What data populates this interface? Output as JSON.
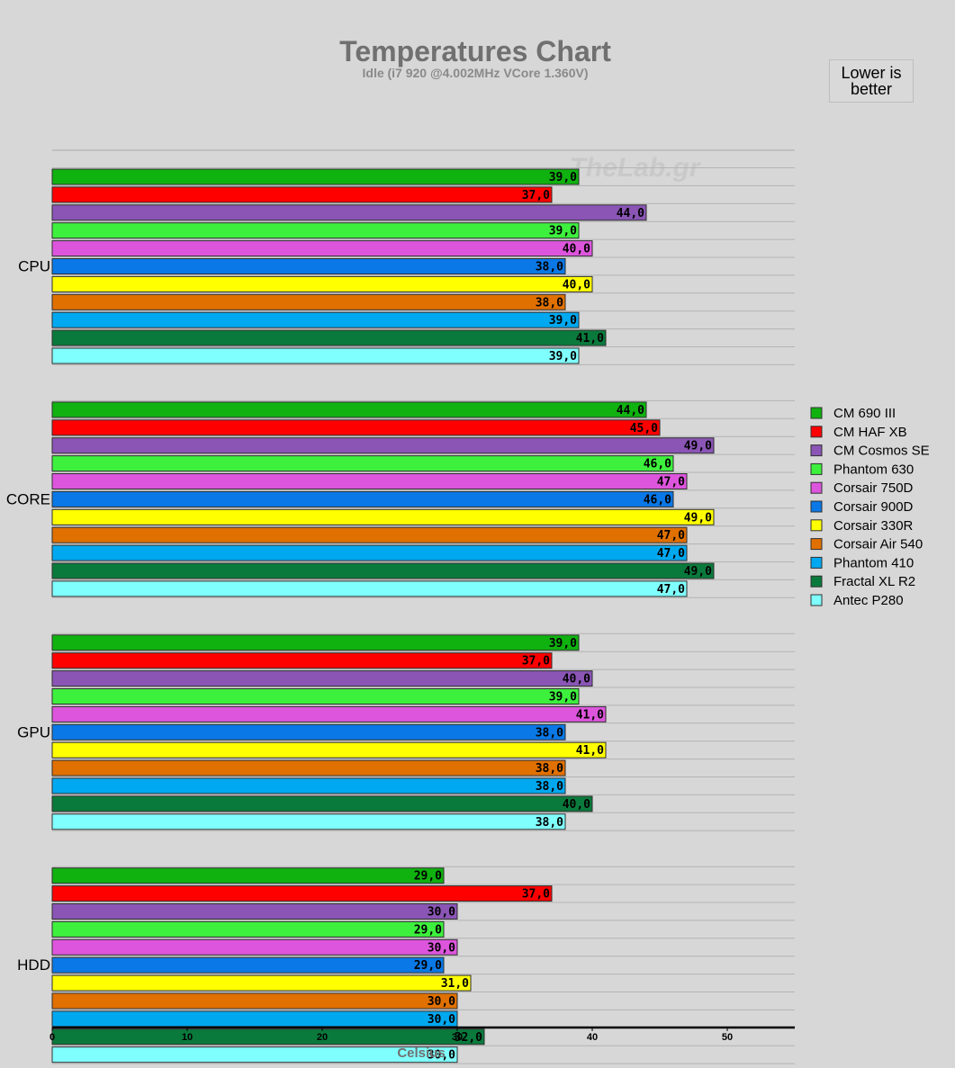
{
  "chart_data": {
    "type": "bar",
    "orientation": "horizontal",
    "title": "Temperatures Chart",
    "subtitle": "Idle (i7 920 @4.002MHz VCore 1.360V)",
    "note": "Lower is better",
    "watermark": "TheLab.gr",
    "xlabel": "Celsius",
    "ylabel": "",
    "xlim": [
      0,
      55
    ],
    "xticks": [
      0,
      10,
      20,
      30,
      40,
      50
    ],
    "tick_labels": [
      "0",
      "10",
      "20",
      "30",
      "40",
      "50"
    ],
    "categories": [
      "CPU",
      "CORE",
      "GPU",
      "HDD"
    ],
    "legend_position": "right",
    "series": [
      {
        "name": "CM 690 III",
        "color": "#0fb20f",
        "values": [
          39.0,
          44.0,
          39.0,
          29.0
        ],
        "labels": [
          "39,0",
          "44,0",
          "39,0",
          "29,0"
        ]
      },
      {
        "name": "CM HAF XB",
        "color": "#ff0000",
        "values": [
          37.0,
          45.0,
          37.0,
          37.0
        ],
        "labels": [
          "37,0",
          "45,0",
          "37,0",
          "37,0"
        ]
      },
      {
        "name": "CM Cosmos SE",
        "color": "#8a55b5",
        "values": [
          44.0,
          49.0,
          40.0,
          30.0
        ],
        "labels": [
          "44,0",
          "49,0",
          "40,0",
          "30,0"
        ]
      },
      {
        "name": "Phantom 630",
        "color": "#3df03d",
        "values": [
          39.0,
          46.0,
          39.0,
          29.0
        ],
        "labels": [
          "39,0",
          "46,0",
          "39,0",
          "29,0"
        ]
      },
      {
        "name": "Corsair 750D",
        "color": "#dc55dc",
        "values": [
          40.0,
          47.0,
          41.0,
          30.0
        ],
        "labels": [
          "40,0",
          "47,0",
          "41,0",
          "30,0"
        ]
      },
      {
        "name": "Corsair 900D",
        "color": "#0a78e6",
        "values": [
          38.0,
          46.0,
          38.0,
          29.0
        ],
        "labels": [
          "38,0",
          "46,0",
          "38,0",
          "29,0"
        ]
      },
      {
        "name": "Corsair 330R",
        "color": "#ffff00",
        "values": [
          40.0,
          49.0,
          41.0,
          31.0
        ],
        "labels": [
          "40,0",
          "49,0",
          "41,0",
          "31,0"
        ]
      },
      {
        "name": "Corsair Air 540",
        "color": "#e07000",
        "values": [
          38.0,
          47.0,
          38.0,
          30.0
        ],
        "labels": [
          "38,0",
          "47,0",
          "38,0",
          "30,0"
        ]
      },
      {
        "name": "Phantom 410",
        "color": "#00a8f0",
        "values": [
          39.0,
          47.0,
          38.0,
          30.0
        ],
        "labels": [
          "39,0",
          "47,0",
          "38,0",
          "30,0"
        ]
      },
      {
        "name": "Fractal XL R2",
        "color": "#0a7a3c",
        "values": [
          41.0,
          49.0,
          40.0,
          32.0
        ],
        "labels": [
          "41,0",
          "49,0",
          "40,0",
          "32,0"
        ]
      },
      {
        "name": "Antec P280",
        "color": "#80ffff",
        "values": [
          39.0,
          47.0,
          38.0,
          30.0
        ],
        "labels": [
          "39,0",
          "47,0",
          "38,0",
          "30,0"
        ]
      }
    ]
  }
}
